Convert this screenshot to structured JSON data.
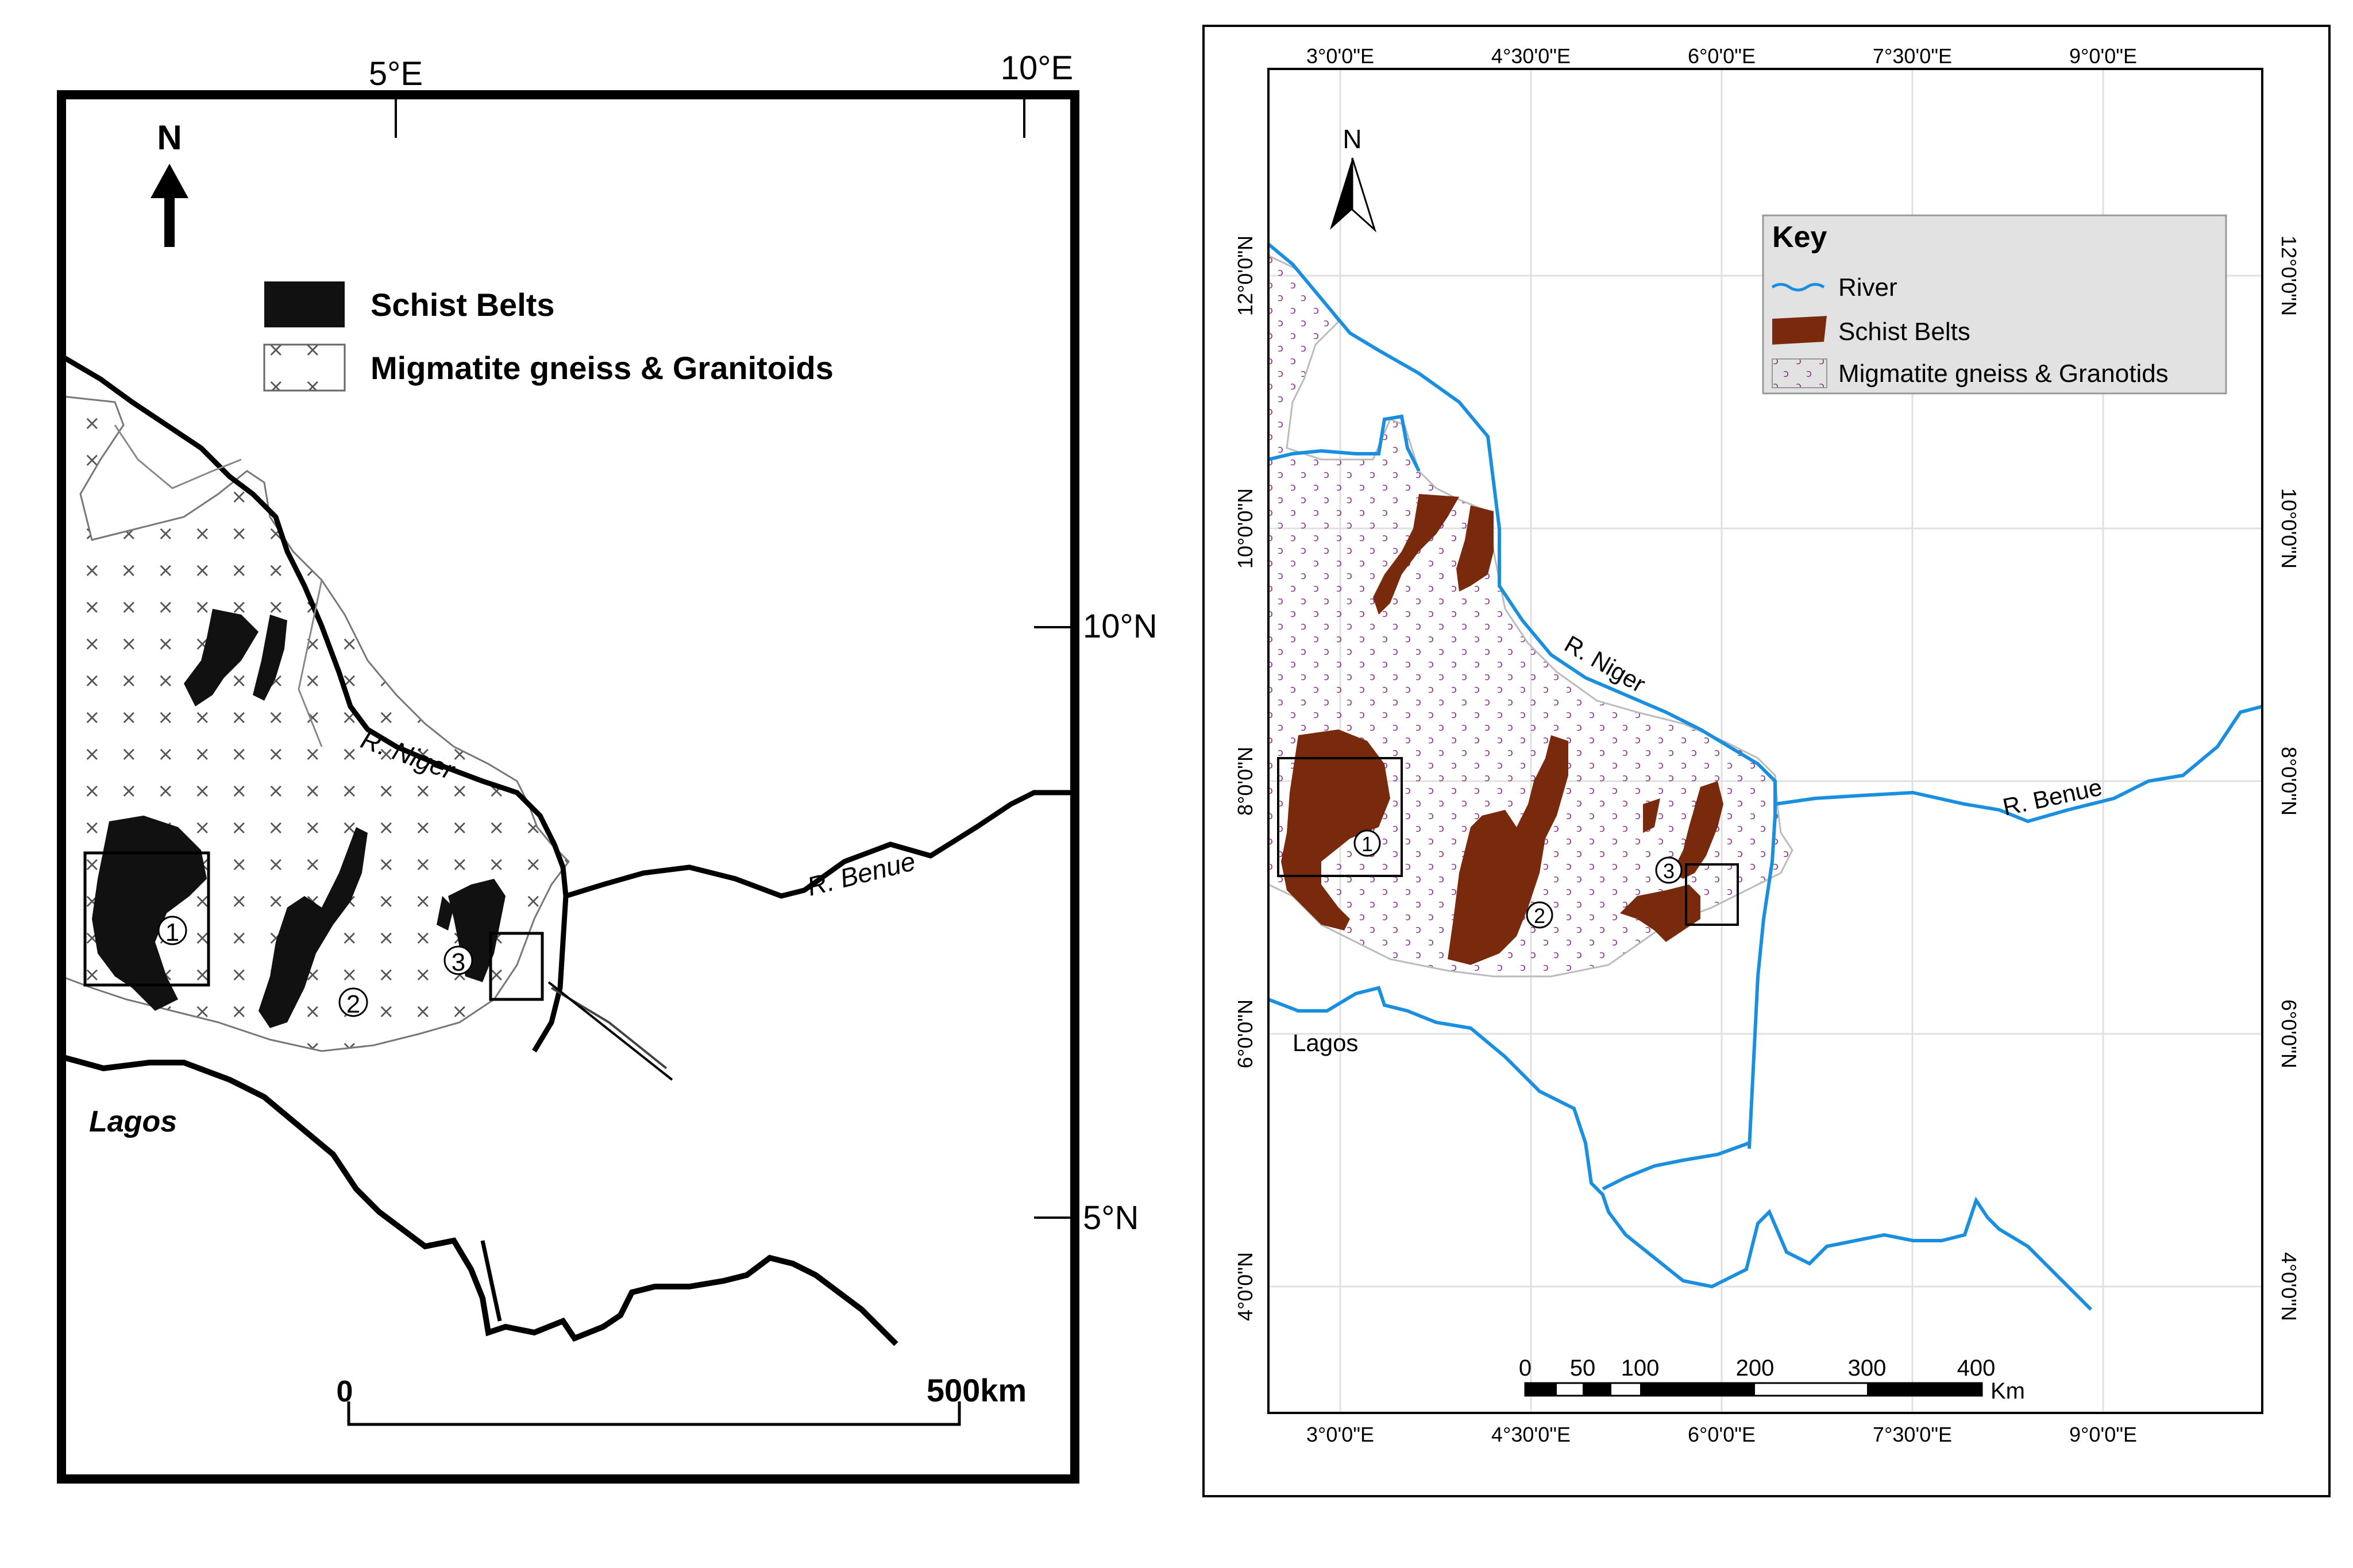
{
  "left_map": {
    "north_label": "N",
    "lon_labels": [
      "5°E",
      "10°E"
    ],
    "lat_labels": [
      "10°N",
      "5°N"
    ],
    "legend": [
      {
        "label": "Schist Belts",
        "symbol": "solid-black-fill"
      },
      {
        "label": "Migmatite gneiss & Granitoids",
        "symbol": "cross-hatch"
      }
    ],
    "river_labels": [
      "R. Niger",
      "R. Benue"
    ],
    "place_labels": [
      "Lagos"
    ],
    "sites": [
      "1",
      "2",
      "3"
    ],
    "scale": {
      "start": "0",
      "end": "500km"
    }
  },
  "right_map": {
    "north_label": "N",
    "lon_labels": [
      "3°0'0\"E",
      "4°30'0\"E",
      "6°0'0\"E",
      "7°30'0\"E",
      "9°0'0\"E"
    ],
    "lat_labels": [
      "12°0'0\"N",
      "10°0'0\"N",
      "8°0'0\"N",
      "6°0'0\"N",
      "4°0'0\"N"
    ],
    "legend": {
      "title": "Key",
      "items": [
        {
          "label": "River",
          "symbol": "blue-wavy-line"
        },
        {
          "label": "Schist Belts",
          "symbol": "brown-fill"
        },
        {
          "label": "Migmatite gneiss & Granotids",
          "symbol": "purple-dot-pattern"
        }
      ]
    },
    "river_labels": [
      "R. Niger",
      "R. Benue"
    ],
    "place_labels": [
      "Lagos"
    ],
    "sites": [
      "1",
      "2",
      "3"
    ],
    "scale": {
      "ticks": [
        "0",
        "50",
        "100",
        "200",
        "300",
        "400"
      ],
      "unit": "Km"
    }
  },
  "colors": {
    "river": "#1a8fe0",
    "schist_right": "#7a2a0c",
    "migmatite_dots": "#8a2a8a",
    "legend_bg": "#e2e2e2",
    "frame": "#000000"
  }
}
